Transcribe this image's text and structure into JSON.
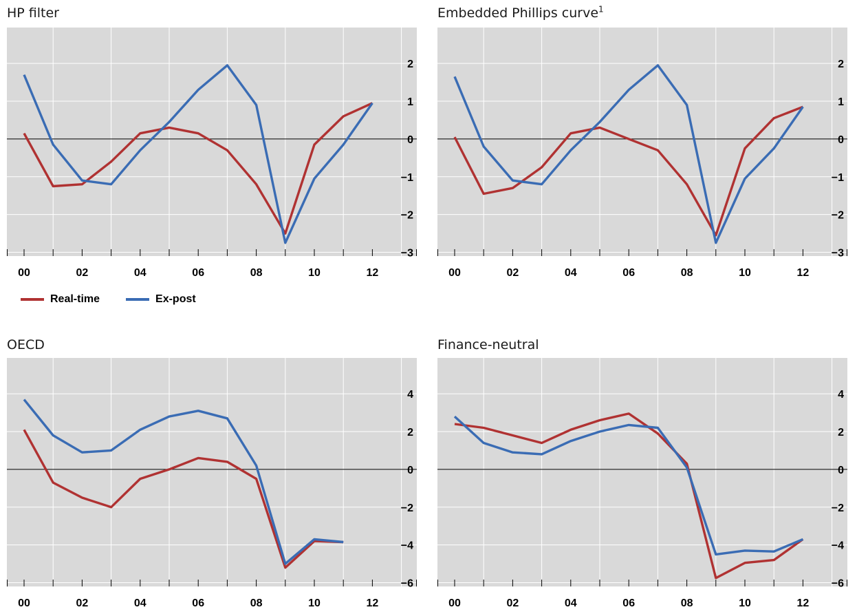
{
  "colors": {
    "real_time": "#b03232",
    "ex_post": "#3a6cb4",
    "panel_bg": "#d9d9d9",
    "grid": "#ffffff"
  },
  "legend": [
    {
      "name": "Real-time",
      "color": "#b03232"
    },
    {
      "name": "Ex-post",
      "color": "#3a6cb4"
    }
  ],
  "chart_data": [
    {
      "type": "line",
      "title": "HP filter",
      "footnote": "",
      "x": [
        0,
        1,
        2,
        3,
        4,
        5,
        6,
        7,
        8,
        9,
        10,
        11,
        12
      ],
      "x_tick_labels": [
        "00",
        "02",
        "04",
        "06",
        "08",
        "10",
        "12"
      ],
      "y_ticks": [
        "2",
        "1",
        "0",
        "−1",
        "−2",
        "−3"
      ],
      "ylim": [
        -3.1,
        2.95
      ],
      "series": [
        {
          "name": "Real-time",
          "values": [
            0.15,
            -1.25,
            -1.2,
            -0.6,
            0.15,
            0.3,
            0.15,
            -0.3,
            -1.2,
            -2.5,
            -0.15,
            0.6,
            0.95
          ]
        },
        {
          "name": "Ex-post",
          "values": [
            1.7,
            -0.15,
            -1.1,
            -1.2,
            -0.3,
            0.45,
            1.3,
            1.95,
            0.9,
            -2.75,
            -1.05,
            -0.15,
            0.95
          ]
        }
      ]
    },
    {
      "type": "line",
      "title": "Embedded Phillips curve",
      "footnote": "1",
      "x": [
        0,
        1,
        2,
        3,
        4,
        5,
        6,
        7,
        8,
        9,
        10,
        11,
        12
      ],
      "x_tick_labels": [
        "00",
        "02",
        "04",
        "06",
        "08",
        "10",
        "12"
      ],
      "y_ticks": [
        "2",
        "1",
        "0",
        "−1",
        "−2",
        "−3"
      ],
      "ylim": [
        -3.1,
        2.95
      ],
      "series": [
        {
          "name": "Real-time",
          "values": [
            0.05,
            -1.45,
            -1.3,
            -0.75,
            0.15,
            0.3,
            0.0,
            -0.3,
            -1.2,
            -2.55,
            -0.25,
            0.55,
            0.85
          ]
        },
        {
          "name": "Ex-post",
          "values": [
            1.65,
            -0.2,
            -1.1,
            -1.2,
            -0.3,
            0.45,
            1.3,
            1.95,
            0.9,
            -2.75,
            -1.05,
            -0.25,
            0.85
          ]
        }
      ]
    },
    {
      "type": "line",
      "title": "OECD",
      "footnote": "",
      "x": [
        0,
        1,
        2,
        3,
        4,
        5,
        6,
        7,
        8,
        9,
        10,
        11,
        12
      ],
      "x_tick_labels": [
        "00",
        "02",
        "04",
        "06",
        "08",
        "10",
        "12"
      ],
      "y_ticks": [
        "4",
        "2",
        "0",
        "−2",
        "−4",
        "−6"
      ],
      "ylim": [
        -6.2,
        5.9
      ],
      "series": [
        {
          "name": "Real-time",
          "values": [
            2.1,
            -0.7,
            -1.5,
            -2.0,
            -0.5,
            0.0,
            0.6,
            0.4,
            -0.5,
            -5.2,
            -3.8,
            -3.85,
            null
          ]
        },
        {
          "name": "Ex-post",
          "values": [
            3.7,
            1.8,
            0.9,
            1.0,
            2.1,
            2.8,
            3.1,
            2.7,
            0.2,
            -5.0,
            -3.7,
            -3.85,
            null
          ]
        }
      ]
    },
    {
      "type": "line",
      "title": "Finance-neutral",
      "footnote": "",
      "x": [
        0,
        1,
        2,
        3,
        4,
        5,
        6,
        7,
        8,
        9,
        10,
        11,
        12
      ],
      "x_tick_labels": [
        "00",
        "02",
        "04",
        "06",
        "08",
        "10",
        "12"
      ],
      "y_ticks": [
        "4",
        "2",
        "0",
        "−2",
        "−4",
        "−6"
      ],
      "ylim": [
        -6.2,
        5.9
      ],
      "series": [
        {
          "name": "Real-time",
          "values": [
            2.4,
            2.2,
            1.8,
            1.4,
            2.1,
            2.6,
            2.95,
            1.9,
            0.3,
            -5.75,
            -4.95,
            -4.8,
            -3.7
          ]
        },
        {
          "name": "Ex-post",
          "values": [
            2.8,
            1.4,
            0.9,
            0.8,
            1.5,
            2.0,
            2.35,
            2.2,
            0.1,
            -4.5,
            -4.3,
            -4.35,
            -3.7
          ]
        }
      ]
    }
  ]
}
